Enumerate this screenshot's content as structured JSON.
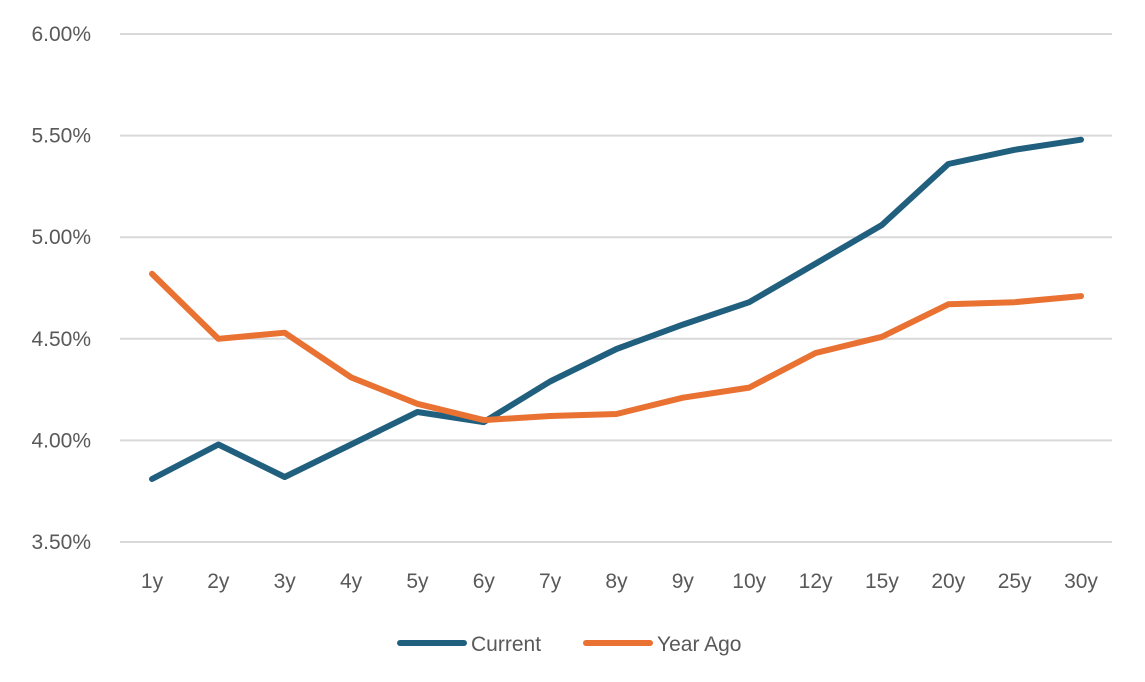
{
  "chart_data": {
    "type": "line",
    "title": "",
    "xlabel": "",
    "ylabel": "",
    "categories": [
      "1y",
      "2y",
      "3y",
      "4y",
      "5y",
      "6y",
      "7y",
      "8y",
      "9y",
      "10y",
      "12y",
      "15y",
      "20y",
      "25y",
      "30y"
    ],
    "series": [
      {
        "name": "Current",
        "color": "#215f7e",
        "values": [
          3.81,
          3.98,
          3.82,
          3.98,
          4.14,
          4.09,
          4.29,
          4.45,
          4.57,
          4.68,
          4.87,
          5.06,
          5.36,
          5.43,
          5.48
        ]
      },
      {
        "name": "Year Ago",
        "color": "#e97132",
        "values": [
          4.82,
          4.5,
          4.53,
          4.31,
          4.18,
          4.1,
          4.12,
          4.13,
          4.21,
          4.26,
          4.43,
          4.51,
          4.67,
          4.68,
          4.71
        ]
      }
    ],
    "ylim": [
      3.5,
      6.0
    ],
    "yticks": [
      "3.50%",
      "4.00%",
      "4.50%",
      "5.00%",
      "5.50%",
      "6.00%"
    ],
    "ytick_values": [
      3.5,
      4.0,
      4.5,
      5.0,
      5.5,
      6.0
    ],
    "grid": true,
    "gridline_color": "#d9d9d9",
    "legend_position": "bottom"
  }
}
